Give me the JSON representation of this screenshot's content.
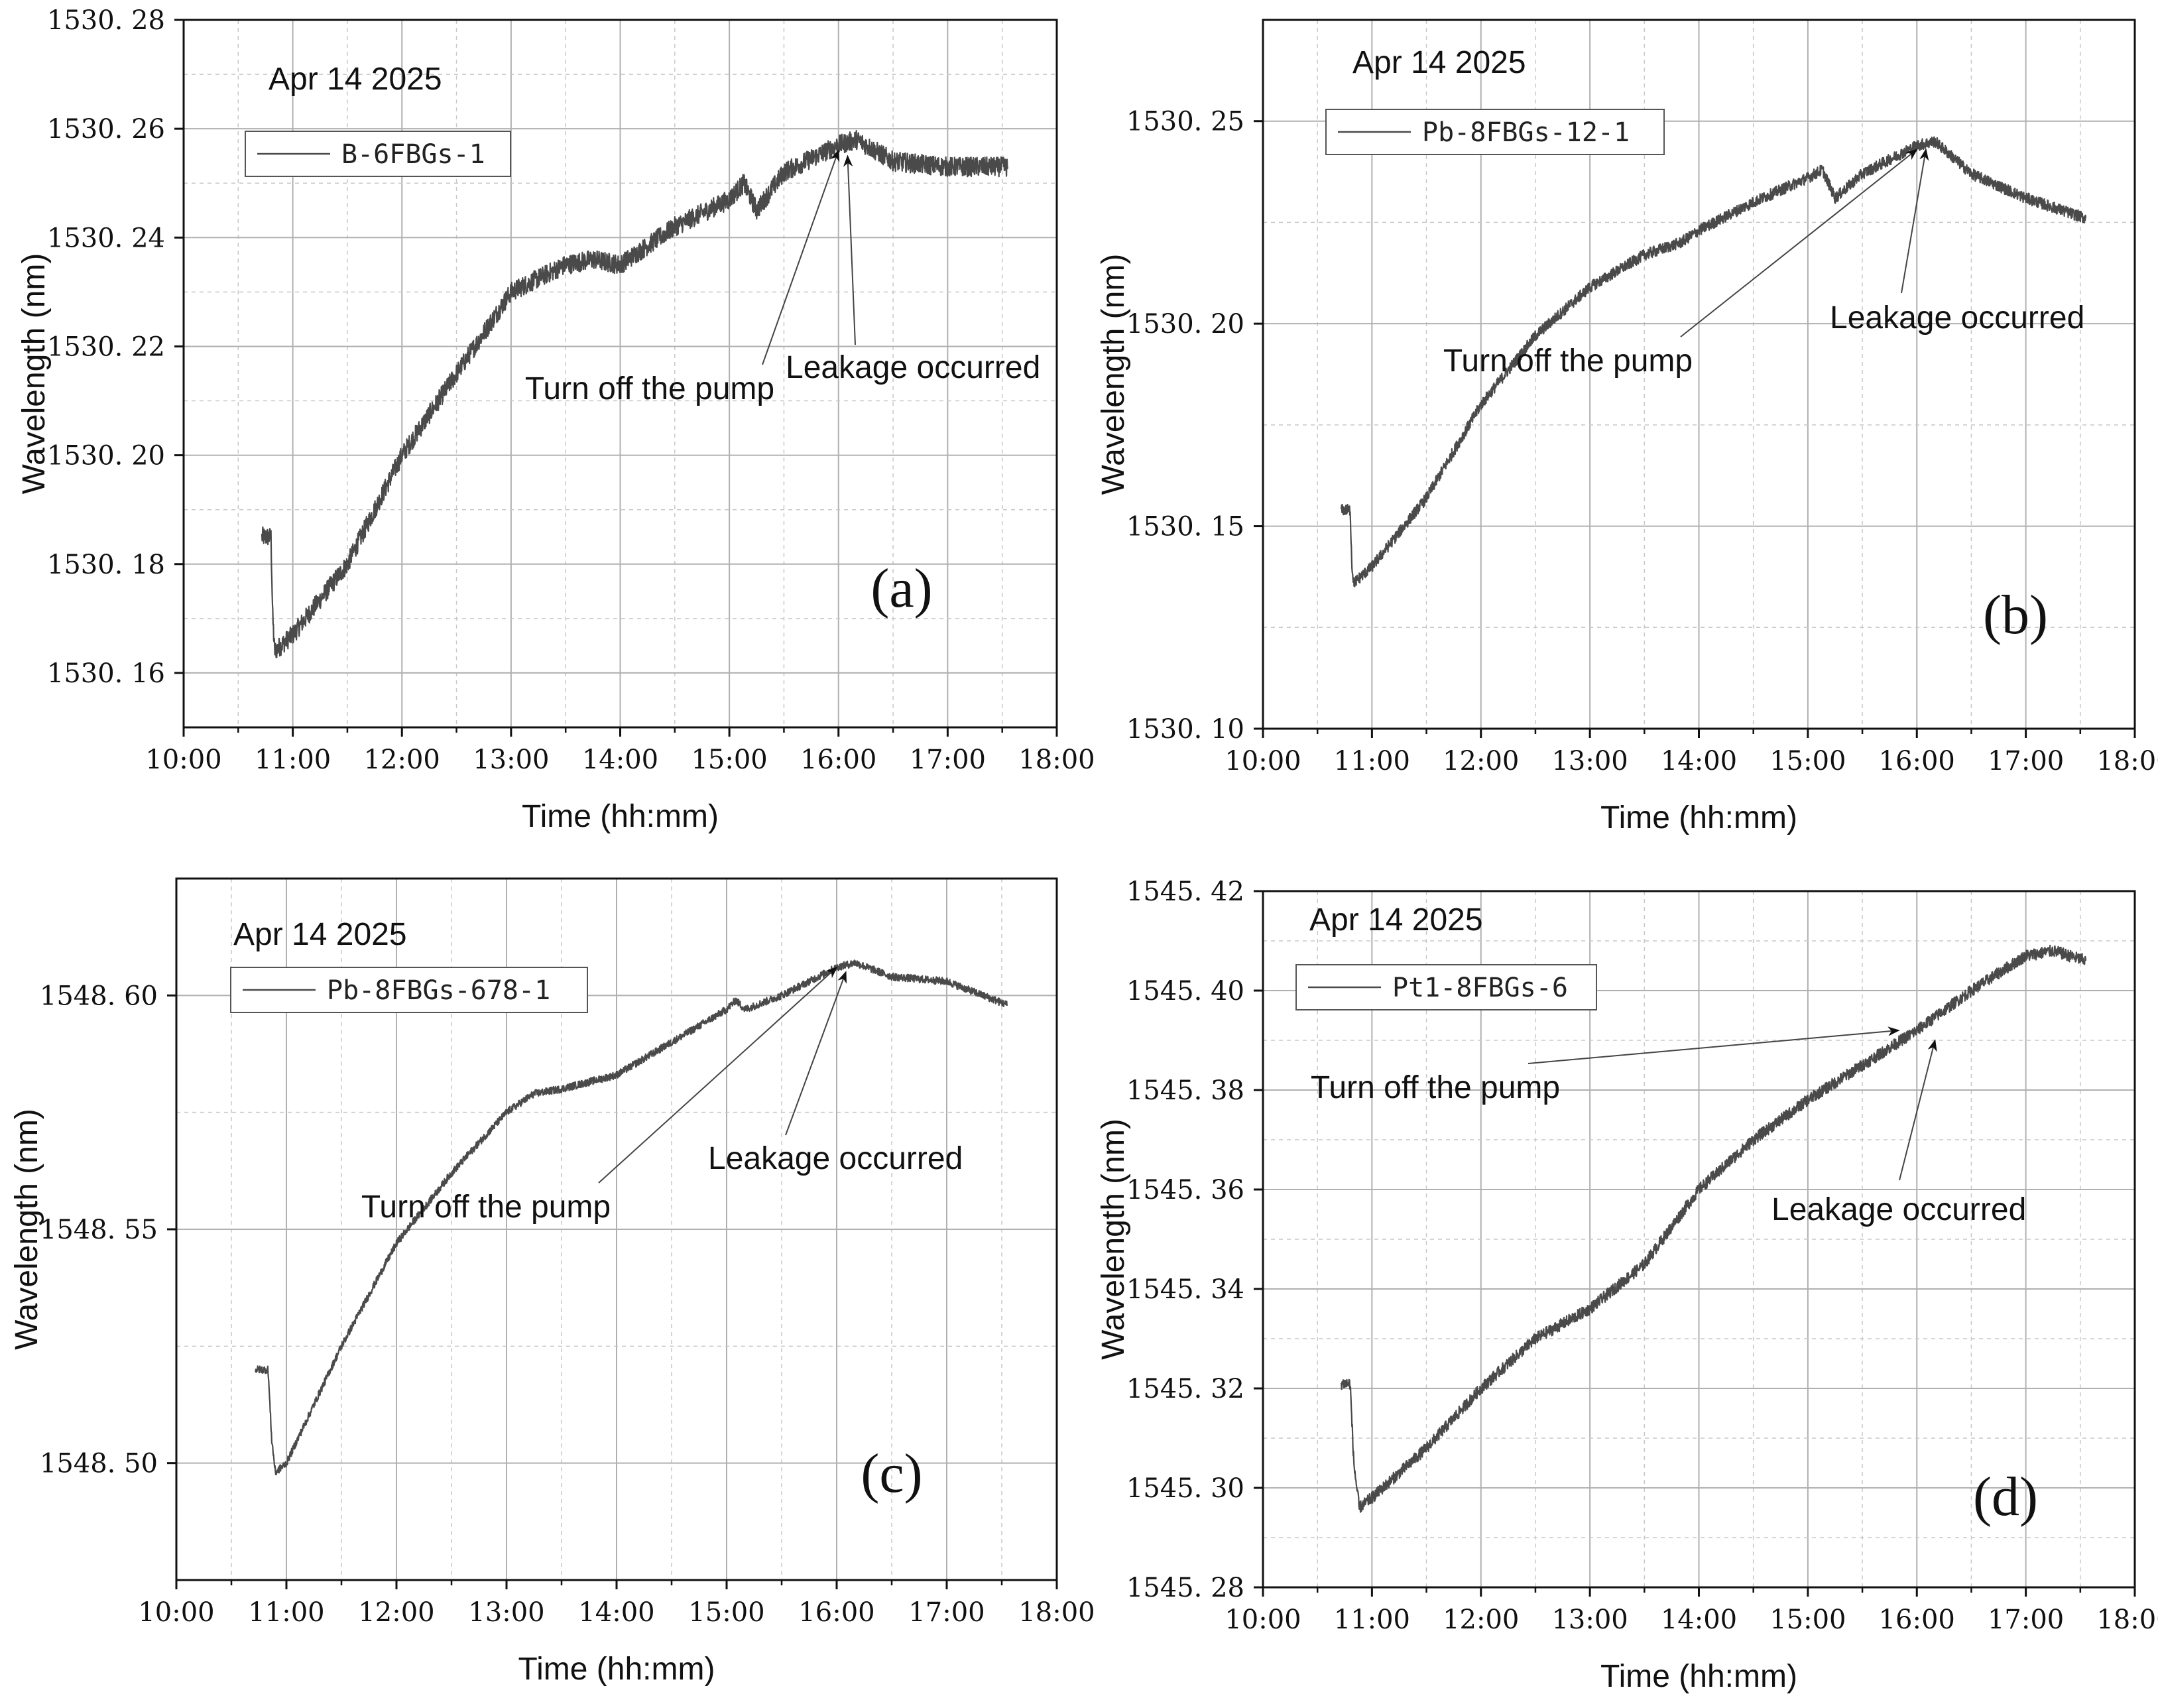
{
  "chart_data": [
    {
      "type": "line",
      "panel_label": "(a)",
      "date_label": "Apr 14 2025",
      "xlabel": "Time (hh:mm)",
      "ylabel": "Wavelength (nm)",
      "xlim": [
        "10:00",
        "18:00"
      ],
      "x_ticks": [
        "10:00",
        "11:00",
        "12:00",
        "13:00",
        "14:00",
        "15:00",
        "16:00",
        "17:00",
        "18:00"
      ],
      "ylim": [
        1530.15,
        1530.28
      ],
      "y_ticks": [
        "1530.16",
        "1530.18",
        "1530.20",
        "1530.22",
        "1530.24",
        "1530.26",
        "1530.28"
      ],
      "grid": true,
      "legend_position": "top-left",
      "series": [
        {
          "name": "B-6FBGs-1",
          "noise": 0.0018,
          "x": [
            "10:43",
            "10:48",
            "10:49",
            "10:50",
            "11:00",
            "11:30",
            "12:00",
            "12:30",
            "13:00",
            "13:30",
            "13:45",
            "14:00",
            "14:30",
            "15:00",
            "15:08",
            "15:15",
            "15:30",
            "16:00",
            "16:10",
            "16:30",
            "17:00",
            "17:33"
          ],
          "y": [
            1530.185,
            1530.185,
            1530.17,
            1530.164,
            1530.167,
            1530.18,
            1530.2,
            1530.215,
            1530.23,
            1530.235,
            1530.236,
            1530.235,
            1530.242,
            1530.247,
            1530.25,
            1530.245,
            1530.252,
            1530.257,
            1530.258,
            1530.254,
            1530.253,
            1530.253
          ]
        }
      ],
      "annotations": [
        {
          "text": "Turn off the pump",
          "x": "16:00",
          "y": 1530.256
        },
        {
          "text": "Leakage occurred",
          "x": "16:05",
          "y": 1530.255
        }
      ]
    },
    {
      "type": "line",
      "panel_label": "(b)",
      "date_label": "Apr 14 2025",
      "xlabel": "Time (hh:mm)",
      "ylabel": "Wavelength (nm)",
      "xlim": [
        "10:00",
        "18:00"
      ],
      "x_ticks": [
        "10:00",
        "11:00",
        "12:00",
        "13:00",
        "14:00",
        "15:00",
        "16:00",
        "17:00",
        "18:00"
      ],
      "ylim": [
        1530.1,
        1530.275
      ],
      "y_ticks": [
        "1530.10",
        "1530.15",
        "1530.20",
        "1530.25"
      ],
      "grid": true,
      "legend_position": "top-left",
      "series": [
        {
          "name": "Pb-8FBGs-12-1",
          "noise": 0.0014,
          "x": [
            "10:43",
            "10:48",
            "10:49",
            "10:50",
            "11:00",
            "11:30",
            "12:00",
            "12:30",
            "13:00",
            "13:30",
            "13:50",
            "14:00",
            "14:30",
            "15:00",
            "15:08",
            "15:15",
            "15:30",
            "16:00",
            "16:10",
            "16:30",
            "17:00",
            "17:33"
          ],
          "y": [
            1530.154,
            1530.154,
            1530.14,
            1530.136,
            1530.14,
            1530.157,
            1530.18,
            1530.197,
            1530.209,
            1530.217,
            1530.22,
            1530.223,
            1530.23,
            1530.236,
            1530.238,
            1530.231,
            1530.237,
            1530.244,
            1530.245,
            1530.237,
            1530.231,
            1530.226
          ]
        }
      ],
      "annotations": [
        {
          "text": "Turn off the pump",
          "x": "16:00",
          "y": 1530.243
        },
        {
          "text": "Leakage occurred",
          "x": "16:05",
          "y": 1530.243
        }
      ]
    },
    {
      "type": "line",
      "panel_label": "(c)",
      "date_label": "Apr 14 2025",
      "xlabel": "Time (hh:mm)",
      "ylabel": "Wavelength (nm)",
      "xlim": [
        "10:00",
        "18:00"
      ],
      "x_ticks": [
        "10:00",
        "11:00",
        "12:00",
        "13:00",
        "14:00",
        "15:00",
        "16:00",
        "17:00",
        "18:00"
      ],
      "ylim": [
        1548.475,
        1548.625
      ],
      "y_ticks": [
        "1548.50",
        "1548.55",
        "1548.60"
      ],
      "grid": true,
      "legend_position": "top-left",
      "series": [
        {
          "name": "Pb-8FBGs-678-1",
          "noise": 0.0008,
          "x": [
            "10:43",
            "10:50",
            "10:52",
            "10:54",
            "11:00",
            "11:30",
            "12:00",
            "12:30",
            "13:00",
            "13:15",
            "13:30",
            "14:00",
            "14:30",
            "15:00",
            "15:05",
            "15:10",
            "15:30",
            "16:00",
            "16:10",
            "16:30",
            "17:00",
            "17:33"
          ],
          "y": [
            1548.52,
            1548.52,
            1548.505,
            1548.498,
            1548.5,
            1548.525,
            1548.547,
            1548.562,
            1548.575,
            1548.579,
            1548.58,
            1548.583,
            1548.59,
            1548.597,
            1548.599,
            1548.597,
            1548.6,
            1548.606,
            1548.607,
            1548.604,
            1548.603,
            1548.598
          ]
        }
      ],
      "annotations": [
        {
          "text": "Turn off the pump",
          "x": "16:00",
          "y": 1548.606
        },
        {
          "text": "Leakage occurred",
          "x": "16:05",
          "y": 1548.605
        }
      ]
    },
    {
      "type": "line",
      "panel_label": "(d)",
      "date_label": "Apr 14 2025",
      "xlabel": "Time (hh:mm)",
      "ylabel": "Wavelength (nm)",
      "xlim": [
        "10:00",
        "18:00"
      ],
      "x_ticks": [
        "10:00",
        "11:00",
        "12:00",
        "13:00",
        "14:00",
        "15:00",
        "16:00",
        "17:00",
        "18:00"
      ],
      "ylim": [
        1545.28,
        1545.42
      ],
      "y_ticks": [
        "1545.28",
        "1545.30",
        "1545.32",
        "1545.34",
        "1545.36",
        "1545.38",
        "1545.40",
        "1545.42"
      ],
      "grid": true,
      "legend_position": "top-left",
      "series": [
        {
          "name": "Pt1-8FBGs-6",
          "noise": 0.0012,
          "x": [
            "10:43",
            "10:48",
            "10:50",
            "10:53",
            "11:00",
            "11:30",
            "12:00",
            "12:30",
            "13:00",
            "13:30",
            "14:00",
            "14:30",
            "15:00",
            "15:30",
            "16:00",
            "16:30",
            "17:00",
            "17:15",
            "17:33"
          ],
          "y": [
            1545.321,
            1545.321,
            1545.305,
            1545.296,
            1545.298,
            1545.308,
            1545.32,
            1545.33,
            1545.336,
            1545.345,
            1545.36,
            1545.37,
            1545.378,
            1545.385,
            1545.392,
            1545.4,
            1545.407,
            1545.408,
            1545.406
          ]
        }
      ],
      "annotations": [
        {
          "text": "Turn off the pump",
          "x": "15:50",
          "y": 1545.392
        },
        {
          "text": "Leakage occurred",
          "x": "16:10",
          "y": 1545.39
        }
      ]
    }
  ]
}
